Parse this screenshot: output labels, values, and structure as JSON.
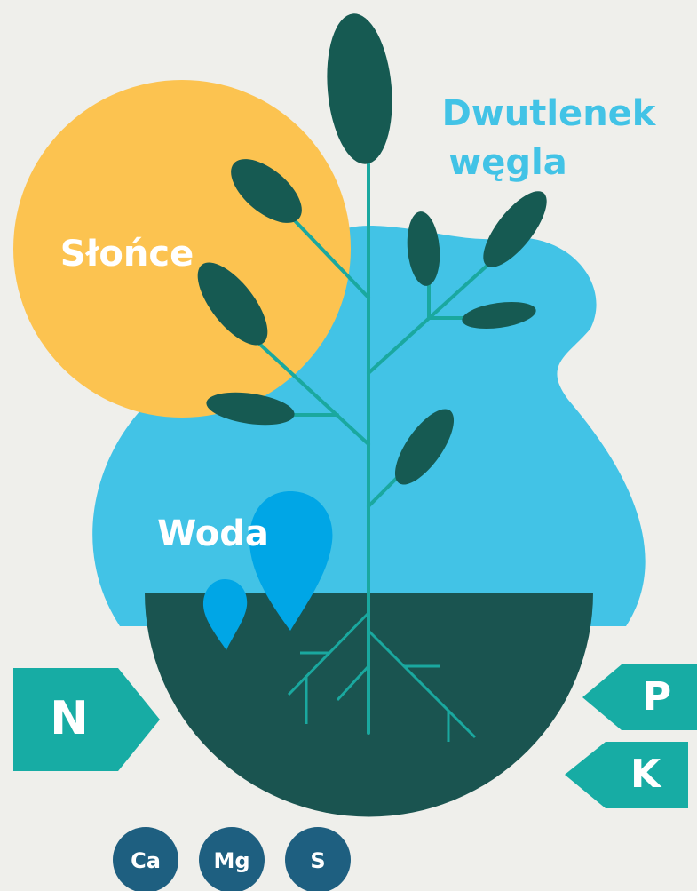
{
  "labels": {
    "sun": "Słońce",
    "co2": [
      "Dwutlenek",
      "węgla"
    ],
    "water": "Woda"
  },
  "nutrients": {
    "nitrogen": "N",
    "phosphorus": "P",
    "potassium": "K"
  },
  "minerals": [
    "Ca",
    "Mg",
    "S"
  ]
}
